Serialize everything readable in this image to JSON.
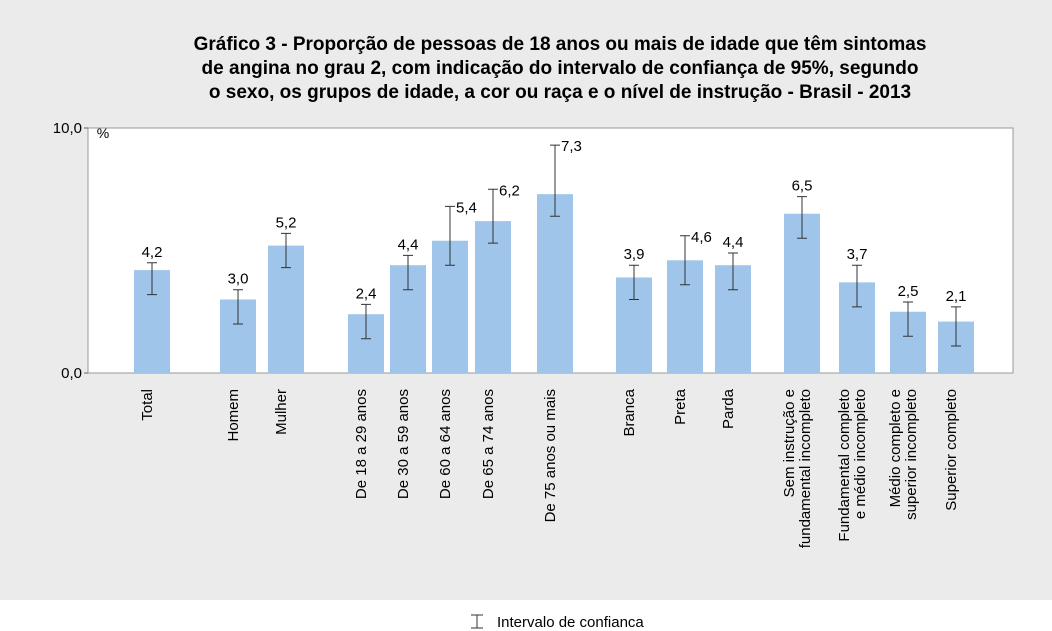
{
  "chart_data": {
    "type": "bar",
    "title": "Gráfico 3 - Proporção de pessoas de 18 anos ou mais de idade que têm sintomas\nde angina no grau 2, com indicação do intervalo de confiança de 95%, segundo\no sexo, os grupos de idade, a cor ou raça e o nível de instrução  - Brasil - 2013",
    "y_label": "%",
    "categories": [
      "Total",
      "Homem",
      "Mulher",
      "De 18 a 29 anos",
      "De 30 a 59 anos",
      "De 60 a 64 anos",
      "De 65 a 74 anos",
      "De 75 anos ou mais",
      "Branca",
      "Preta",
      "Parda",
      "Sem instrução e\nfundamental incompleto",
      "Fundamental completo\ne médio incompleto",
      "Médio completo e\nsuperior incompleto",
      "Superior completo"
    ],
    "values": [
      4.2,
      3.0,
      5.2,
      2.4,
      4.4,
      5.4,
      6.2,
      7.3,
      3.9,
      4.6,
      4.4,
      6.5,
      3.7,
      2.5,
      2.1
    ],
    "value_labels": [
      "4,2",
      "3,0",
      "5,2",
      "2,4",
      "4,4",
      "5,4",
      "6,2",
      "7,3",
      "3,9",
      "4,6",
      "4,4",
      "6,5",
      "3,7",
      "2,5",
      "2,1"
    ],
    "ci_low": [
      3.2,
      2.0,
      4.3,
      1.4,
      3.4,
      4.4,
      5.3,
      6.4,
      3.0,
      3.6,
      3.4,
      5.5,
      2.7,
      1.5,
      1.1
    ],
    "ci_high": [
      4.5,
      3.4,
      5.7,
      2.8,
      4.8,
      6.8,
      7.5,
      9.3,
      4.4,
      5.6,
      4.9,
      7.2,
      4.4,
      2.9,
      2.7
    ],
    "color": "#9fc6ea",
    "ylim": [
      0,
      10
    ],
    "yticks": [
      {
        "value": 0,
        "label": "0,0"
      },
      {
        "value": 10,
        "label": "10,0"
      }
    ],
    "legend": "Intervalo de confianca"
  }
}
